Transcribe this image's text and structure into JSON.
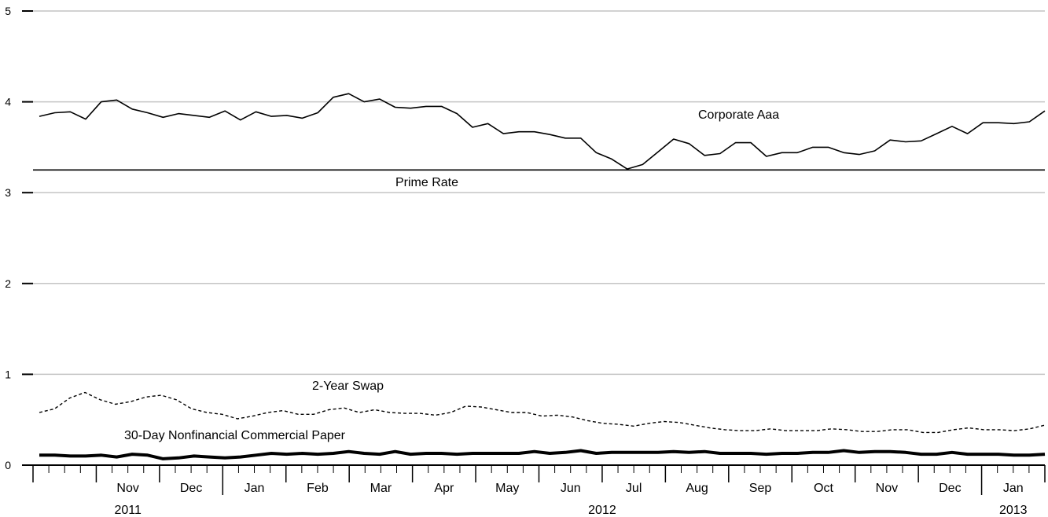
{
  "chart_data": {
    "type": "line",
    "title": "",
    "xlabel": "",
    "ylabel": "",
    "ylim": [
      0,
      5
    ],
    "yticks": [
      0,
      1,
      2,
      3,
      4,
      5
    ],
    "grid": true,
    "x_range": [
      "2011-10-01",
      "2013-01-31"
    ],
    "month_labels": [
      {
        "label": "Nov",
        "date": "2011-11"
      },
      {
        "label": "Dec",
        "date": "2011-12"
      },
      {
        "label": "Jan",
        "date": "2012-01"
      },
      {
        "label": "Feb",
        "date": "2012-02"
      },
      {
        "label": "Mar",
        "date": "2012-03"
      },
      {
        "label": "Apr",
        "date": "2012-04"
      },
      {
        "label": "May",
        "date": "2012-05"
      },
      {
        "label": "Jun",
        "date": "2012-06"
      },
      {
        "label": "Jul",
        "date": "2012-07"
      },
      {
        "label": "Aug",
        "date": "2012-08"
      },
      {
        "label": "Sep",
        "date": "2012-09"
      },
      {
        "label": "Oct",
        "date": "2012-10"
      },
      {
        "label": "Nov",
        "date": "2012-11"
      },
      {
        "label": "Dec",
        "date": "2012-12"
      },
      {
        "label": "Jan",
        "date": "2013-01"
      }
    ],
    "year_labels": [
      {
        "label": "2011",
        "date": "2011"
      },
      {
        "label": "2012",
        "date": "2012"
      },
      {
        "label": "2013",
        "date": "2013"
      }
    ],
    "series": [
      {
        "name": "Corporate Aaa",
        "style": "solid",
        "values": [
          3.84,
          3.88,
          3.89,
          3.81,
          4.0,
          4.02,
          3.92,
          3.88,
          3.83,
          3.87,
          3.85,
          3.83,
          3.9,
          3.8,
          3.89,
          3.84,
          3.85,
          3.82,
          3.88,
          4.05,
          4.09,
          4.0,
          4.03,
          3.94,
          3.93,
          3.95,
          3.95,
          3.87,
          3.72,
          3.76,
          3.65,
          3.67,
          3.67,
          3.64,
          3.6,
          3.6,
          3.44,
          3.37,
          3.26,
          3.31,
          3.45,
          3.59,
          3.54,
          3.41,
          3.43,
          3.55,
          3.55,
          3.4,
          3.44,
          3.44,
          3.5,
          3.5,
          3.44,
          3.42,
          3.46,
          3.58,
          3.56,
          3.57,
          3.65,
          3.73,
          3.65,
          3.77,
          3.77,
          3.76,
          3.78,
          3.9
        ]
      },
      {
        "name": "Prime Rate",
        "style": "solid",
        "values": [
          3.25,
          3.25
        ]
      },
      {
        "name": "2-Year Swap",
        "style": "dashed",
        "values": [
          0.58,
          0.62,
          0.74,
          0.8,
          0.72,
          0.67,
          0.7,
          0.75,
          0.77,
          0.72,
          0.62,
          0.58,
          0.56,
          0.51,
          0.54,
          0.58,
          0.6,
          0.56,
          0.56,
          0.61,
          0.63,
          0.58,
          0.61,
          0.58,
          0.57,
          0.57,
          0.55,
          0.58,
          0.65,
          0.64,
          0.61,
          0.58,
          0.58,
          0.54,
          0.55,
          0.53,
          0.49,
          0.46,
          0.45,
          0.43,
          0.46,
          0.48,
          0.47,
          0.44,
          0.41,
          0.39,
          0.38,
          0.38,
          0.4,
          0.38,
          0.38,
          0.38,
          0.4,
          0.39,
          0.37,
          0.37,
          0.39,
          0.39,
          0.36,
          0.36,
          0.39,
          0.41,
          0.39,
          0.39,
          0.38,
          0.4,
          0.44
        ]
      },
      {
        "name": "30-Day Nonfinancial Commercial Paper",
        "style": "bold",
        "values": [
          0.11,
          0.11,
          0.1,
          0.1,
          0.11,
          0.09,
          0.12,
          0.11,
          0.07,
          0.08,
          0.1,
          0.09,
          0.08,
          0.09,
          0.11,
          0.13,
          0.12,
          0.13,
          0.12,
          0.13,
          0.15,
          0.13,
          0.12,
          0.15,
          0.12,
          0.13,
          0.13,
          0.12,
          0.13,
          0.13,
          0.13,
          0.13,
          0.15,
          0.13,
          0.14,
          0.16,
          0.13,
          0.14,
          0.14,
          0.14,
          0.14,
          0.15,
          0.14,
          0.15,
          0.13,
          0.13,
          0.13,
          0.12,
          0.13,
          0.13,
          0.14,
          0.14,
          0.16,
          0.14,
          0.15,
          0.15,
          0.14,
          0.12,
          0.12,
          0.14,
          0.12,
          0.12,
          0.12,
          0.11,
          0.11,
          0.12
        ]
      }
    ]
  }
}
